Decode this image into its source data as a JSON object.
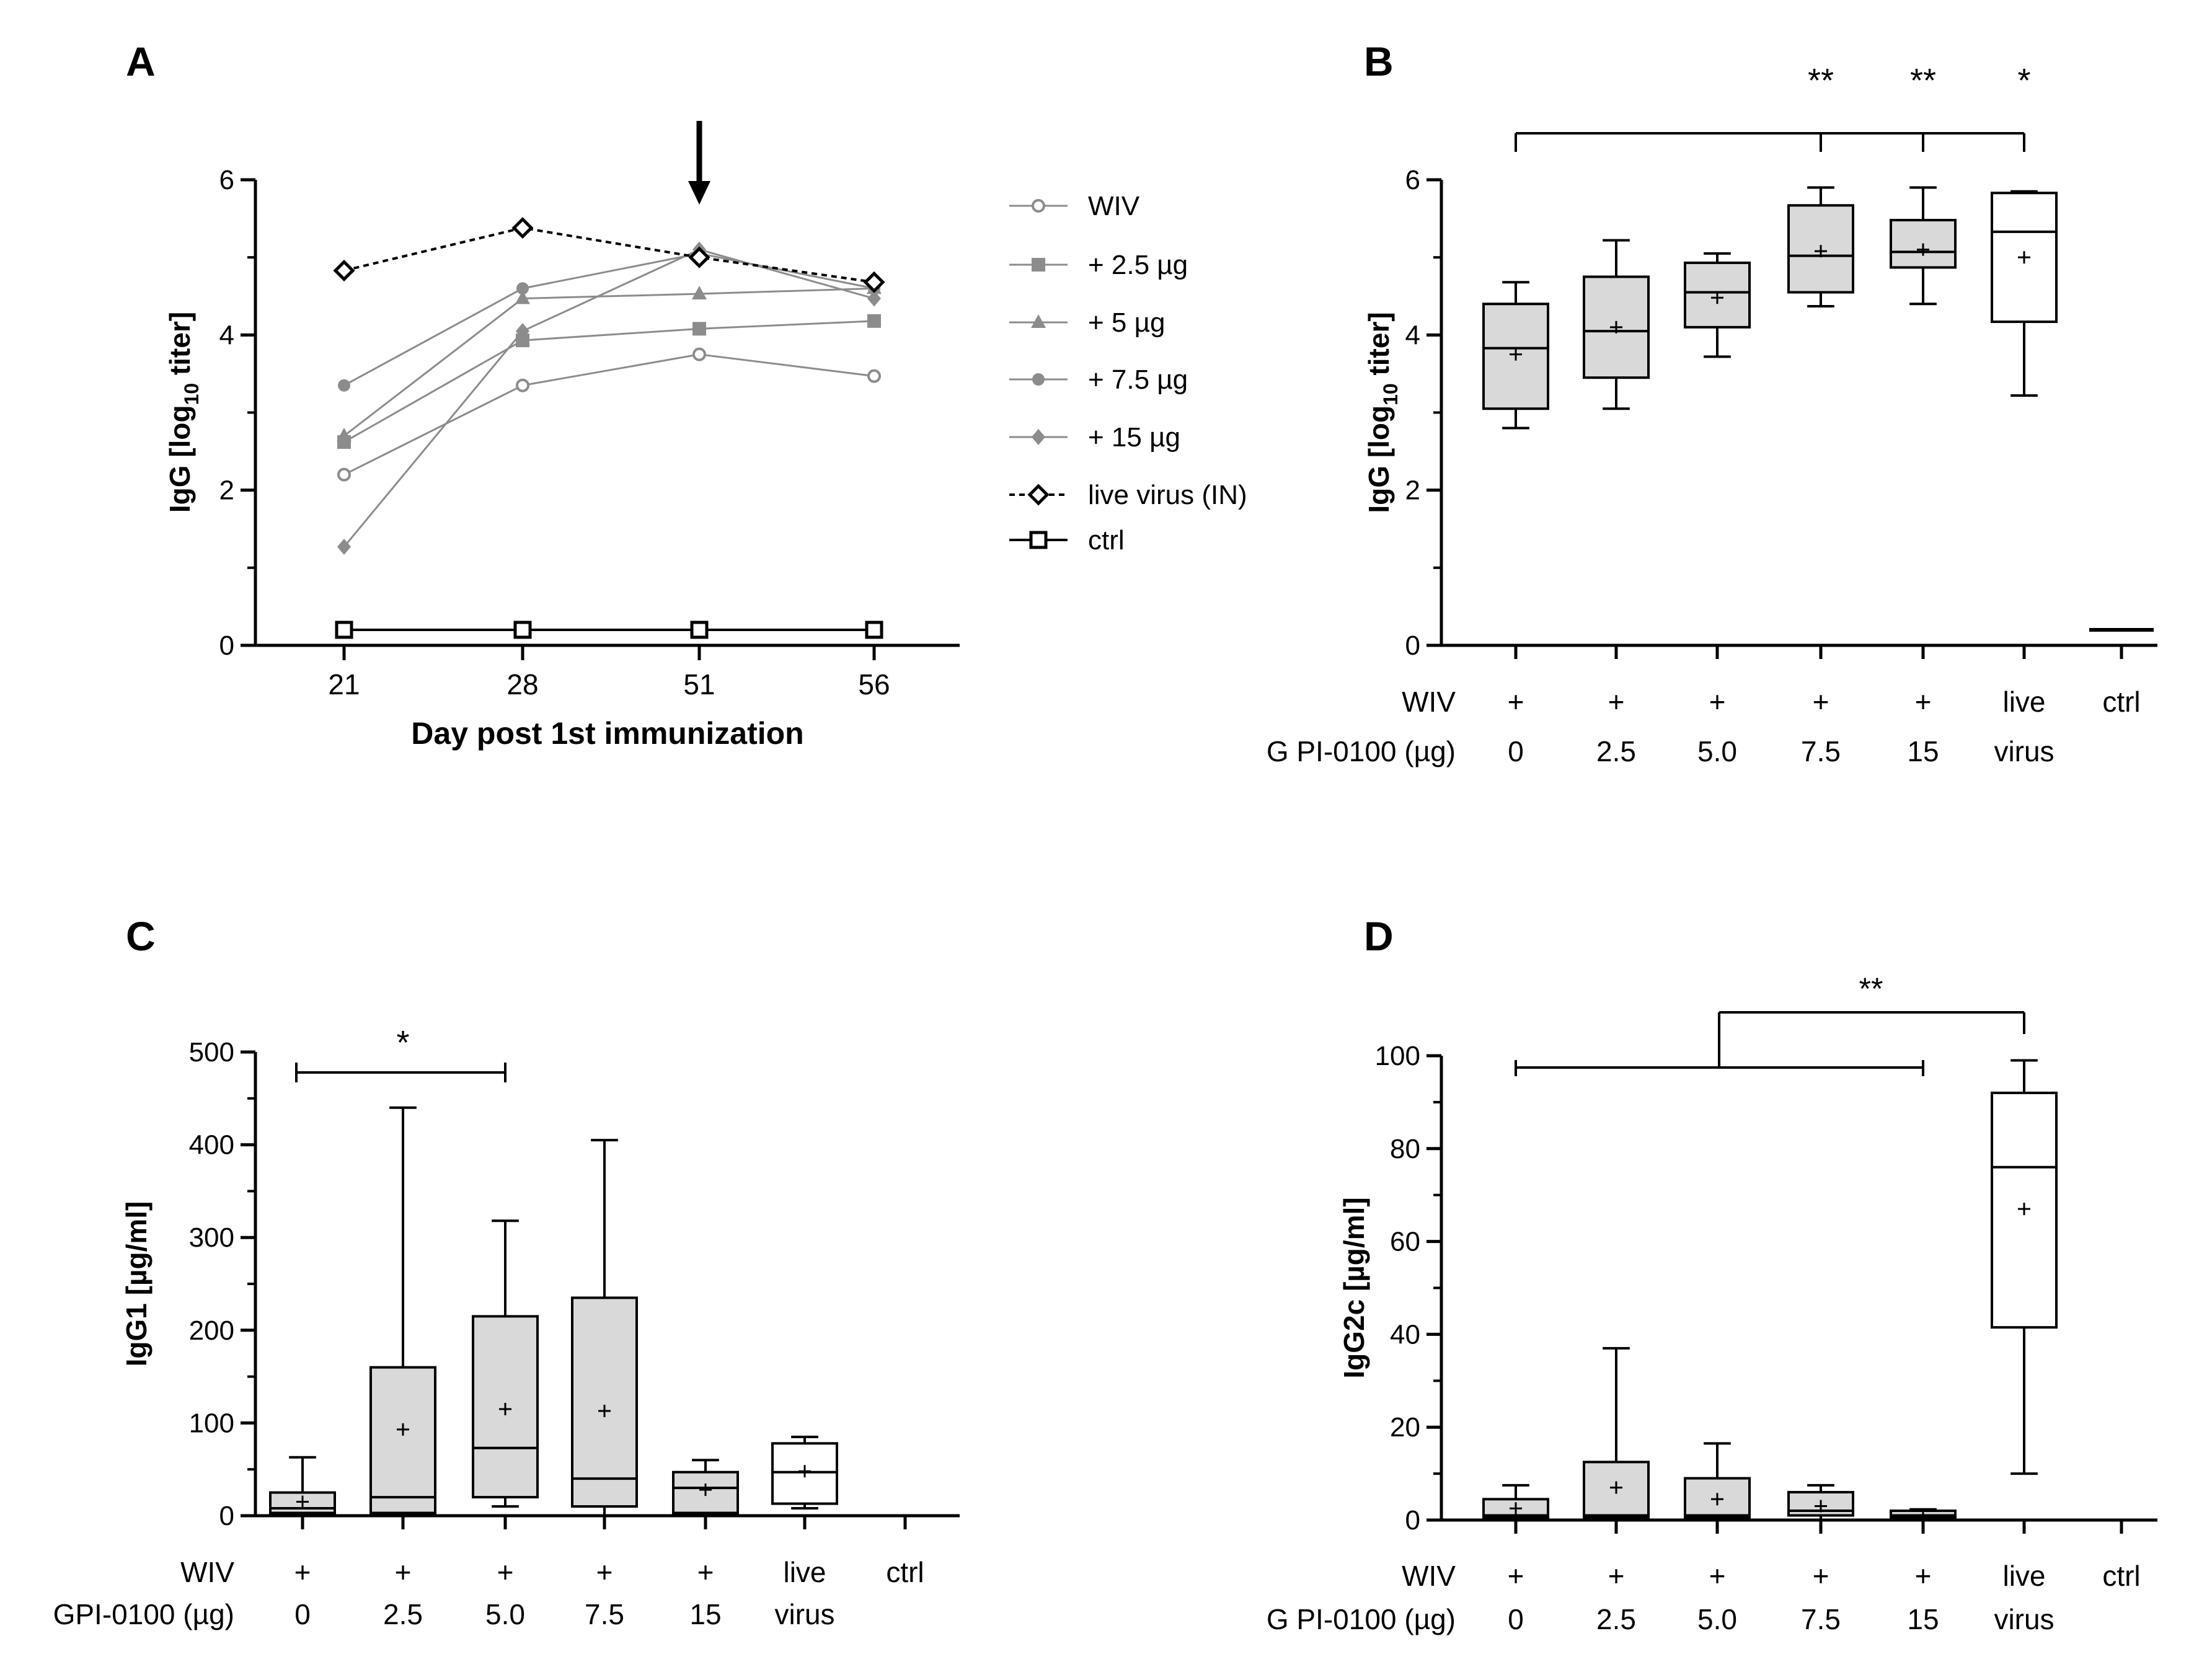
{
  "panels": {
    "A": {
      "letter": "A"
    },
    "B": {
      "letter": "B"
    },
    "C": {
      "letter": "C"
    },
    "D": {
      "letter": "D"
    }
  },
  "row_labels": {
    "wiv": "WIV",
    "gpi": "G PI-0100 (µg)",
    "gpi_c": "GPI-0100 (µg)"
  },
  "chart_data": [
    {
      "panel": "A",
      "type": "line",
      "xlabel": "Day post 1st immunization",
      "ylabel": "IgG [log10 titer]",
      "ylabel_parts": [
        "IgG [log",
        "10",
        " titer]"
      ],
      "categories": [
        "21",
        "28",
        "51",
        "56"
      ],
      "ylim": [
        0,
        6
      ],
      "yticks": [
        0,
        2,
        4,
        6
      ],
      "annotation": "arrow at day 51",
      "legend_position": "right",
      "series": [
        {
          "name": "WIV",
          "marker": "open-circle",
          "color": "#8c8c8c",
          "style": "solid",
          "values": [
            2.2,
            3.35,
            3.75,
            3.47
          ]
        },
        {
          "name": "+ 2.5 µg",
          "marker": "square",
          "color": "#8c8c8c",
          "style": "solid",
          "values": [
            2.62,
            3.93,
            4.08,
            4.18
          ]
        },
        {
          "name": "+ 5 µg",
          "marker": "triangle",
          "color": "#8c8c8c",
          "style": "solid",
          "values": [
            2.7,
            4.47,
            4.53,
            4.6
          ]
        },
        {
          "name": "+ 7.5 µg",
          "marker": "circle",
          "color": "#8c8c8c",
          "style": "solid",
          "values": [
            3.35,
            4.6,
            5.05,
            4.6
          ]
        },
        {
          "name": "+ 15 µg",
          "marker": "diamond",
          "color": "#8c8c8c",
          "style": "solid",
          "values": [
            1.27,
            4.05,
            5.1,
            4.47
          ]
        },
        {
          "name": "live virus (IN)",
          "marker": "open-diamond",
          "color": "#000000",
          "style": "dashed",
          "values": [
            4.83,
            5.38,
            5.0,
            4.68
          ]
        },
        {
          "name": "ctrl",
          "marker": "open-square",
          "color": "#000000",
          "style": "solid",
          "values": [
            0.2,
            0.2,
            0.2,
            0.2
          ]
        }
      ]
    },
    {
      "panel": "B",
      "type": "box",
      "ylabel": "IgG [log10 titer]",
      "ylabel_parts": [
        "IgG [log",
        "10",
        " titer]"
      ],
      "ylim": [
        0,
        6
      ],
      "yticks": [
        0,
        2,
        4,
        6
      ],
      "wiv_row": [
        "+",
        "+",
        "+",
        "+",
        "+",
        "live",
        "ctrl"
      ],
      "gpi_row": [
        "0",
        "2.5",
        "5.0",
        "7.5",
        "15",
        "virus",
        ""
      ],
      "boxes": [
        {
          "min": 2.8,
          "q1": 3.05,
          "median": 3.83,
          "q3": 4.4,
          "max": 4.68,
          "mean": 3.75,
          "fill": "#d9d9d9"
        },
        {
          "min": 3.05,
          "q1": 3.45,
          "median": 4.05,
          "q3": 4.75,
          "max": 5.22,
          "mean": 4.1,
          "fill": "#d9d9d9"
        },
        {
          "min": 3.72,
          "q1": 4.1,
          "median": 4.55,
          "q3": 4.93,
          "max": 5.05,
          "mean": 4.48,
          "fill": "#d9d9d9"
        },
        {
          "min": 4.37,
          "q1": 4.55,
          "median": 5.02,
          "q3": 5.67,
          "max": 5.9,
          "mean": 5.08,
          "fill": "#d9d9d9"
        },
        {
          "min": 4.4,
          "q1": 4.87,
          "median": 5.07,
          "q3": 5.48,
          "max": 5.9,
          "mean": 5.1,
          "fill": "#d9d9d9"
        },
        {
          "min": 3.22,
          "q1": 4.17,
          "median": 5.33,
          "q3": 5.83,
          "max": 5.85,
          "mean": 5.0,
          "fill": "#ffffff"
        },
        {
          "line": 0.2
        }
      ],
      "significance": {
        "from": 0,
        "to": [
          3,
          4,
          5
        ],
        "labels": [
          "**",
          "**",
          "*"
        ]
      }
    },
    {
      "panel": "C",
      "type": "box",
      "ylabel": "IgG1 [µg/ml]",
      "ylim": [
        0,
        500
      ],
      "yticks": [
        0,
        100,
        200,
        300,
        400,
        500
      ],
      "wiv_row": [
        "+",
        "+",
        "+",
        "+",
        "+",
        "live",
        "ctrl"
      ],
      "gpi_row": [
        "0",
        "2.5",
        "5.0",
        "7.5",
        "15",
        "virus",
        ""
      ],
      "boxes": [
        {
          "min": 0,
          "q1": 3,
          "median": 8,
          "q3": 25,
          "max": 63,
          "mean": 15,
          "fill": "#d9d9d9"
        },
        {
          "min": 0,
          "q1": 3,
          "median": 20,
          "q3": 160,
          "max": 440,
          "mean": 93,
          "fill": "#d9d9d9"
        },
        {
          "min": 10,
          "q1": 20,
          "median": 73,
          "q3": 215,
          "max": 318,
          "mean": 115,
          "fill": "#d9d9d9"
        },
        {
          "min": 0,
          "q1": 10,
          "median": 40,
          "q3": 235,
          "max": 405,
          "mean": 113,
          "fill": "#d9d9d9"
        },
        {
          "min": 0,
          "q1": 3,
          "median": 30,
          "q3": 47,
          "max": 60,
          "mean": 28,
          "fill": "#d9d9d9"
        },
        {
          "min": 8,
          "q1": 13,
          "median": 47,
          "q3": 78,
          "max": 85,
          "mean": 48,
          "fill": "#ffffff"
        },
        null
      ],
      "significance": {
        "from": 0,
        "to": [
          2
        ],
        "labels": [
          "*"
        ]
      }
    },
    {
      "panel": "D",
      "type": "box",
      "ylabel": "IgG2c [µg/ml]",
      "ylim": [
        0,
        100
      ],
      "yticks": [
        0,
        20,
        40,
        60,
        80,
        100
      ],
      "wiv_row": [
        "+",
        "+",
        "+",
        "+",
        "+",
        "live",
        "ctrl"
      ],
      "gpi_row": [
        "0",
        "2.5",
        "5.0",
        "7.5",
        "15",
        "virus",
        ""
      ],
      "boxes": [
        {
          "min": 0,
          "q1": 0.5,
          "median": 1,
          "q3": 4.5,
          "max": 7.5,
          "mean": 2.5,
          "fill": "#d9d9d9"
        },
        {
          "min": 0,
          "q1": 0.5,
          "median": 1,
          "q3": 12.5,
          "max": 37,
          "mean": 7,
          "fill": "#d9d9d9"
        },
        {
          "min": 0,
          "q1": 0.5,
          "median": 1,
          "q3": 9,
          "max": 16.5,
          "mean": 4.5,
          "fill": "#d9d9d9"
        },
        {
          "min": 0,
          "q1": 1,
          "median": 2,
          "q3": 6,
          "max": 7.5,
          "mean": 3,
          "fill": "#d9d9d9"
        },
        {
          "min": 0,
          "q1": 0.5,
          "median": 1,
          "q3": 2,
          "max": 2.3,
          "mean": 1,
          "fill": "#d9d9d9"
        },
        {
          "min": 10,
          "q1": 41.5,
          "median": 76,
          "q3": 92,
          "max": 99,
          "mean": 67,
          "fill": "#ffffff"
        },
        null
      ],
      "significance": {
        "from": 0,
        "to_span": 4,
        "target": 5,
        "labels": [
          "**"
        ]
      }
    }
  ]
}
